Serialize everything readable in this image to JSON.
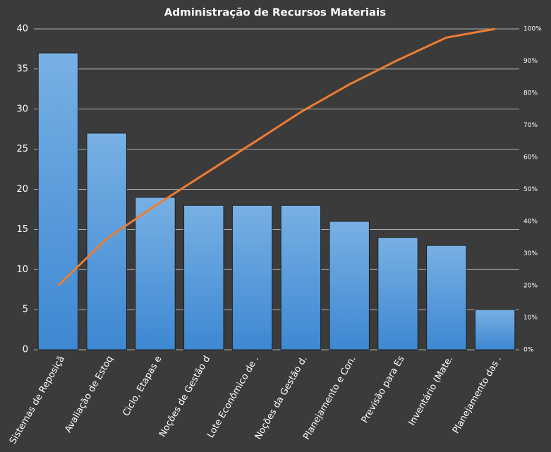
{
  "chart_data": {
    "type": "pareto",
    "title": "Administração  de Recursos  Materiais",
    "categories": [
      "Sistemas de Reposiçã",
      "Avaliação de Estoq",
      "Ciclo, Etapas e",
      "Noções de Gestão d",
      "Lote Econômico de .",
      "Noções da Gestão d.",
      "Planejamento e Con.",
      "Previsão para Es",
      "Inventário (Mate.",
      "Planejamento das ."
    ],
    "series": [
      {
        "type": "bar",
        "color": "#5b9bd5",
        "values": [
          37,
          27,
          19,
          18,
          18,
          18,
          16,
          14,
          13,
          5
        ]
      },
      {
        "type": "line",
        "color": "#ed7d31",
        "axis": "y2",
        "values": [
          20,
          34.6,
          44.9,
          54.6,
          64.3,
          74.1,
          82.7,
          90.3,
          97.3,
          100
        ]
      }
    ],
    "ylim": [
      0,
      40
    ],
    "yticks": [
      0,
      5,
      10,
      15,
      20,
      25,
      30,
      35,
      40
    ],
    "y2lim": [
      0,
      100
    ],
    "y2ticks": [
      {
        "value": 0,
        "label": "0%"
      },
      {
        "value": 10,
        "label": "10%"
      },
      {
        "value": 20,
        "label": "20%"
      },
      {
        "value": 30,
        "label": "30%"
      },
      {
        "value": 40,
        "label": "40%"
      },
      {
        "value": 50,
        "label": "50%"
      },
      {
        "value": 60,
        "label": "60%"
      },
      {
        "value": 70,
        "label": "70%"
      },
      {
        "value": 80,
        "label": "80%"
      },
      {
        "value": 90,
        "label": "90%"
      },
      {
        "value": 100,
        "label": "100%"
      }
    ],
    "grid": true
  }
}
